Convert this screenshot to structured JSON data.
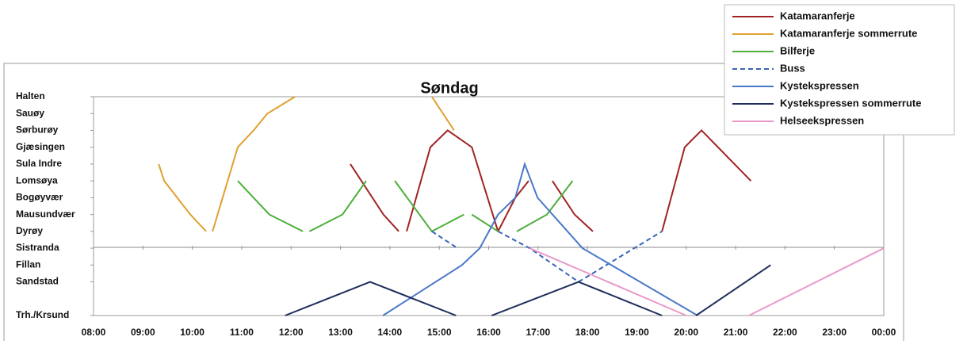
{
  "chart_data": {
    "type": "line",
    "title": "Søndag",
    "xlim": [
      8,
      24
    ],
    "xticks": [
      {
        "value": 8,
        "label": "08:00"
      },
      {
        "value": 9,
        "label": "09:00"
      },
      {
        "value": 10,
        "label": "10:00"
      },
      {
        "value": 11,
        "label": "11:00"
      },
      {
        "value": 12,
        "label": "12:00"
      },
      {
        "value": 13,
        "label": "13:00"
      },
      {
        "value": 14,
        "label": "14:00"
      },
      {
        "value": 15,
        "label": "15:00"
      },
      {
        "value": 16,
        "label": "16:00"
      },
      {
        "value": 17,
        "label": "17:00"
      },
      {
        "value": 18,
        "label": "18:00"
      },
      {
        "value": 19,
        "label": "19:00"
      },
      {
        "value": 20,
        "label": "20:00"
      },
      {
        "value": 21,
        "label": "21:00"
      },
      {
        "value": 22,
        "label": "22:00"
      },
      {
        "value": 23,
        "label": "23:00"
      },
      {
        "value": 24,
        "label": "00:00"
      }
    ],
    "ylim": [
      0,
      13
    ],
    "yticks": [
      {
        "value": 13,
        "label": "Halten"
      },
      {
        "value": 12,
        "label": "Sauøy"
      },
      {
        "value": 11,
        "label": "Sørburøy"
      },
      {
        "value": 10,
        "label": "Gjæsingen"
      },
      {
        "value": 9,
        "label": "Sula Indre"
      },
      {
        "value": 8,
        "label": "Lomsøya"
      },
      {
        "value": 7,
        "label": "Bogøyvær"
      },
      {
        "value": 6,
        "label": "Mausundvær"
      },
      {
        "value": 5,
        "label": "Dyrøy"
      },
      {
        "value": 4,
        "label": "Sistranda"
      },
      {
        "value": 3,
        "label": "Fillan"
      },
      {
        "value": 2,
        "label": "Sandstad"
      },
      {
        "value": 0,
        "label": "Trh./Krsund"
      }
    ],
    "series": [
      {
        "name": "Katamaranferje",
        "color": "#a02424",
        "dashed": false,
        "x": [
          13.2,
          13.87,
          14.18,
          null,
          14.34,
          14.82,
          15.17,
          15.66,
          16.19,
          null,
          16.19,
          16.54,
          16.81,
          null,
          17.29,
          17.74,
          18.11,
          null,
          19.51,
          19.97,
          20.31,
          21.31
        ],
        "values": [
          9,
          6,
          5,
          null,
          5,
          10,
          11,
          10,
          5,
          null,
          5,
          7,
          8,
          null,
          8,
          6,
          5,
          null,
          5,
          10,
          11,
          8
        ]
      },
      {
        "name": "Katamaranferje sommerrute",
        "color": "#e0a030",
        "dashed": false,
        "x": [
          9.32,
          9.43,
          9.96,
          10.28,
          null,
          10.41,
          10.92,
          11.24,
          11.52,
          12.08,
          null,
          14.85,
          15.3
        ],
        "values": [
          9,
          8,
          6,
          5,
          null,
          5,
          10,
          11,
          12,
          13,
          null,
          13,
          11
        ]
      },
      {
        "name": "Bilferje",
        "color": "#4caf3a",
        "dashed": false,
        "x": [
          10.92,
          11.56,
          12.24,
          null,
          12.37,
          13.04,
          13.52,
          null,
          14.1,
          14.85,
          15.5,
          null,
          15.66,
          16.19,
          null,
          16.57,
          17.18,
          17.7
        ],
        "values": [
          8,
          6,
          5,
          null,
          5,
          6,
          8,
          null,
          8,
          5,
          6,
          null,
          6,
          5,
          null,
          5,
          6,
          8
        ]
      },
      {
        "name": "Buss",
        "color": "#3a64b8",
        "dashed": true,
        "x": [
          14.85,
          15.37,
          null,
          16.19,
          16.83,
          17.82,
          null,
          17.82,
          19.51
        ],
        "values": [
          5,
          4,
          null,
          5,
          4,
          2,
          null,
          2,
          5
        ]
      },
      {
        "name": "Kystekspressen",
        "color": "#4a78c8",
        "dashed": false,
        "x": [
          13.86,
          15.46,
          15.82,
          16.19,
          16.54,
          16.73,
          16.99,
          17.9,
          20.23
        ],
        "values": [
          0,
          3,
          4,
          6,
          7,
          9,
          7,
          4,
          0
        ]
      },
      {
        "name": "Kystekspressen sommerrute",
        "color": "#1f2d5a",
        "dashed": false,
        "x": [
          11.88,
          13.6,
          15.34,
          null,
          16.06,
          17.82,
          19.51,
          null,
          20.2,
          21.71
        ],
        "values": [
          0,
          2,
          0,
          null,
          0,
          2,
          0,
          null,
          0,
          3
        ]
      },
      {
        "name": "Helseekspressen",
        "color": "#e89ac8",
        "dashed": false,
        "x": [
          16.83,
          20.0,
          null,
          21.27,
          24.0
        ],
        "values": [
          4,
          0,
          null,
          0,
          4
        ]
      }
    ]
  }
}
